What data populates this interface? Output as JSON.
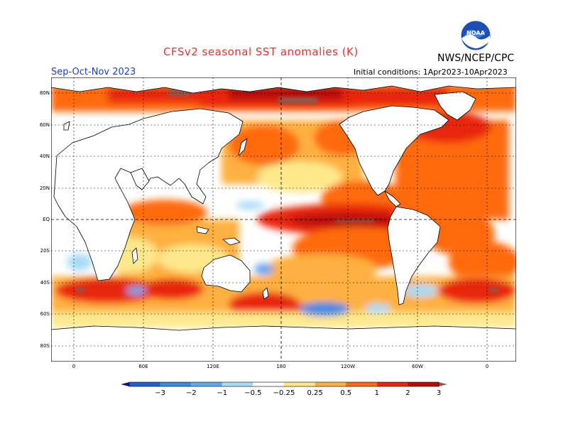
{
  "header": {
    "title": "CFSv2 seasonal SST anomalies (K)",
    "season": "Sep-Oct-Nov 2023",
    "initial_conditions": "Initial conditions: 1Apr2023-10Apr2023",
    "org": "NWS/NCEP/CPC",
    "logo_text": "NOAA"
  },
  "axes": {
    "lat_labels": [
      "80N",
      "60N",
      "40N",
      "20N",
      "EQ",
      "20S",
      "40S",
      "60S",
      "80S"
    ],
    "lon_labels": [
      "0",
      "60E",
      "120E",
      "180",
      "120W",
      "60W",
      "0"
    ]
  },
  "colorbar": {
    "labels": [
      "−3",
      "−2",
      "−1",
      "−0.5",
      "−0.25",
      "0.25",
      "0.5",
      "1",
      "2",
      "3"
    ],
    "colors": [
      "#1a0a9c",
      "#1f5fd6",
      "#3b8ae6",
      "#62a8ee",
      "#a8dcf6",
      "#ffffff",
      "#ffe88c",
      "#ffb040",
      "#ff6a10",
      "#e8260c",
      "#b80a0a",
      "#8a5a4a"
    ]
  },
  "colors": {
    "title": "#e8312a",
    "season": "#1f3fbf",
    "land": "#ffffff",
    "coast": "#000000"
  }
}
